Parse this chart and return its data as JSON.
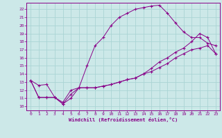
{
  "xlabel": "Windchill (Refroidissement éolien,°C)",
  "bg_color": "#cce8e8",
  "grid_color": "#aad4d4",
  "line_color": "#880088",
  "xlim": [
    -0.5,
    23.5
  ],
  "ylim": [
    9.5,
    22.8
  ],
  "xticks": [
    0,
    1,
    2,
    3,
    4,
    5,
    6,
    7,
    8,
    9,
    10,
    11,
    12,
    13,
    14,
    15,
    16,
    17,
    18,
    19,
    20,
    21,
    22,
    23
  ],
  "yticks": [
    10,
    11,
    12,
    13,
    14,
    15,
    16,
    17,
    18,
    19,
    20,
    21,
    22
  ],
  "curve1_x": [
    0,
    1,
    2,
    3,
    4,
    5,
    6,
    7,
    8,
    9,
    10,
    11,
    12,
    13,
    14,
    15,
    16,
    17,
    18,
    19,
    20,
    21,
    22,
    23
  ],
  "curve1_y": [
    13.2,
    12.6,
    12.7,
    11.1,
    10.5,
    12.0,
    12.3,
    15.0,
    17.5,
    18.5,
    20.0,
    21.0,
    21.5,
    22.0,
    22.2,
    22.4,
    22.5,
    21.5,
    20.3,
    19.2,
    18.5,
    18.5,
    17.8,
    17.5
  ],
  "curve2_x": [
    0,
    1,
    2,
    3,
    4,
    5,
    6,
    7,
    8,
    9,
    10,
    11,
    12,
    13,
    14,
    15,
    16,
    17,
    18,
    19,
    20,
    21,
    22,
    23
  ],
  "curve2_y": [
    13.2,
    11.1,
    11.1,
    11.1,
    10.3,
    11.0,
    12.3,
    12.3,
    12.3,
    12.5,
    12.7,
    13.0,
    13.3,
    13.5,
    14.0,
    14.3,
    14.8,
    15.3,
    16.0,
    16.5,
    17.0,
    17.2,
    17.5,
    16.5
  ],
  "curve3_x": [
    0,
    1,
    2,
    3,
    4,
    5,
    6,
    7,
    8,
    9,
    10,
    11,
    12,
    13,
    14,
    15,
    16,
    17,
    18,
    19,
    20,
    21,
    22,
    23
  ],
  "curve3_y": [
    13.2,
    11.1,
    11.1,
    11.1,
    10.3,
    11.5,
    12.3,
    12.3,
    12.3,
    12.5,
    12.7,
    13.0,
    13.3,
    13.5,
    14.0,
    14.7,
    15.5,
    16.0,
    16.7,
    17.2,
    18.0,
    19.0,
    18.5,
    16.5
  ]
}
